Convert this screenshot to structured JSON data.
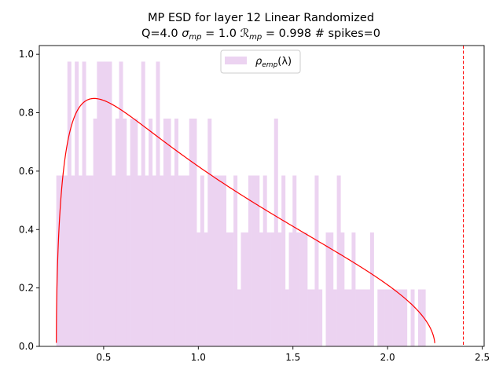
{
  "chart_data": {
    "type": "bar",
    "title_line1": "MP ESD for layer 12 Linear Randomized",
    "title_line2": {
      "q": "Q=4.0",
      "sigma_sym": "σ",
      "sigma_sub": "mp",
      "sigma_val": "= 1.0",
      "r_sym": "ℛ",
      "r_sub": "mp",
      "r_val": "= 0.998",
      "spikes": "# spikes=0"
    },
    "legend": {
      "symbol": "ρ",
      "sub": "emp",
      "arg": "(λ)",
      "placement": "top-center"
    },
    "xlim": [
      0.16,
      2.51
    ],
    "ylim": [
      0,
      1.03
    ],
    "xticks": [
      "0.5",
      "1.0",
      "1.5",
      "2.0",
      "2.5"
    ],
    "xtick_values": [
      0.5,
      1.0,
      1.5,
      2.0,
      2.5
    ],
    "yticks": [
      "0.0",
      "0.2",
      "0.4",
      "0.6",
      "0.8",
      "1.0"
    ],
    "ytick_values": [
      0.0,
      0.2,
      0.4,
      0.6,
      0.8,
      1.0
    ],
    "histogram": {
      "bin_start": 0.25,
      "bin_width": 0.0195,
      "color": "#ecd3f1",
      "values": [
        0.585,
        0.585,
        0.585,
        0.975,
        0.585,
        0.975,
        0.585,
        0.975,
        0.585,
        0.585,
        0.78,
        0.975,
        0.975,
        0.975,
        0.975,
        0.585,
        0.78,
        0.975,
        0.78,
        0.585,
        0.78,
        0.78,
        0.585,
        0.975,
        0.585,
        0.78,
        0.585,
        0.975,
        0.585,
        0.78,
        0.78,
        0.585,
        0.78,
        0.585,
        0.585,
        0.585,
        0.78,
        0.78,
        0.39,
        0.585,
        0.39,
        0.78,
        0.585,
        0.585,
        0.585,
        0.585,
        0.39,
        0.39,
        0.585,
        0.195,
        0.39,
        0.39,
        0.585,
        0.585,
        0.585,
        0.39,
        0.585,
        0.39,
        0.39,
        0.78,
        0.39,
        0.585,
        0.195,
        0.39,
        0.585,
        0.39,
        0.39,
        0.39,
        0.195,
        0.195,
        0.585,
        0.195,
        0.0,
        0.39,
        0.39,
        0.195,
        0.585,
        0.39,
        0.195,
        0.195,
        0.39,
        0.195,
        0.195,
        0.195,
        0.195,
        0.39,
        0.0,
        0.195,
        0.195,
        0.195,
        0.195,
        0.195,
        0.195,
        0.195,
        0.195,
        0.0,
        0.195,
        0.0,
        0.195,
        0.195
      ]
    },
    "mp_curve": {
      "color": "#ff0000",
      "lambda_min": 0.25,
      "lambda_max": 2.25,
      "Q": 4.0,
      "sigma": 1.0
    },
    "spike_line": {
      "x": 2.4,
      "color": "#ff0000",
      "style": "dashed"
    },
    "grid": false
  }
}
